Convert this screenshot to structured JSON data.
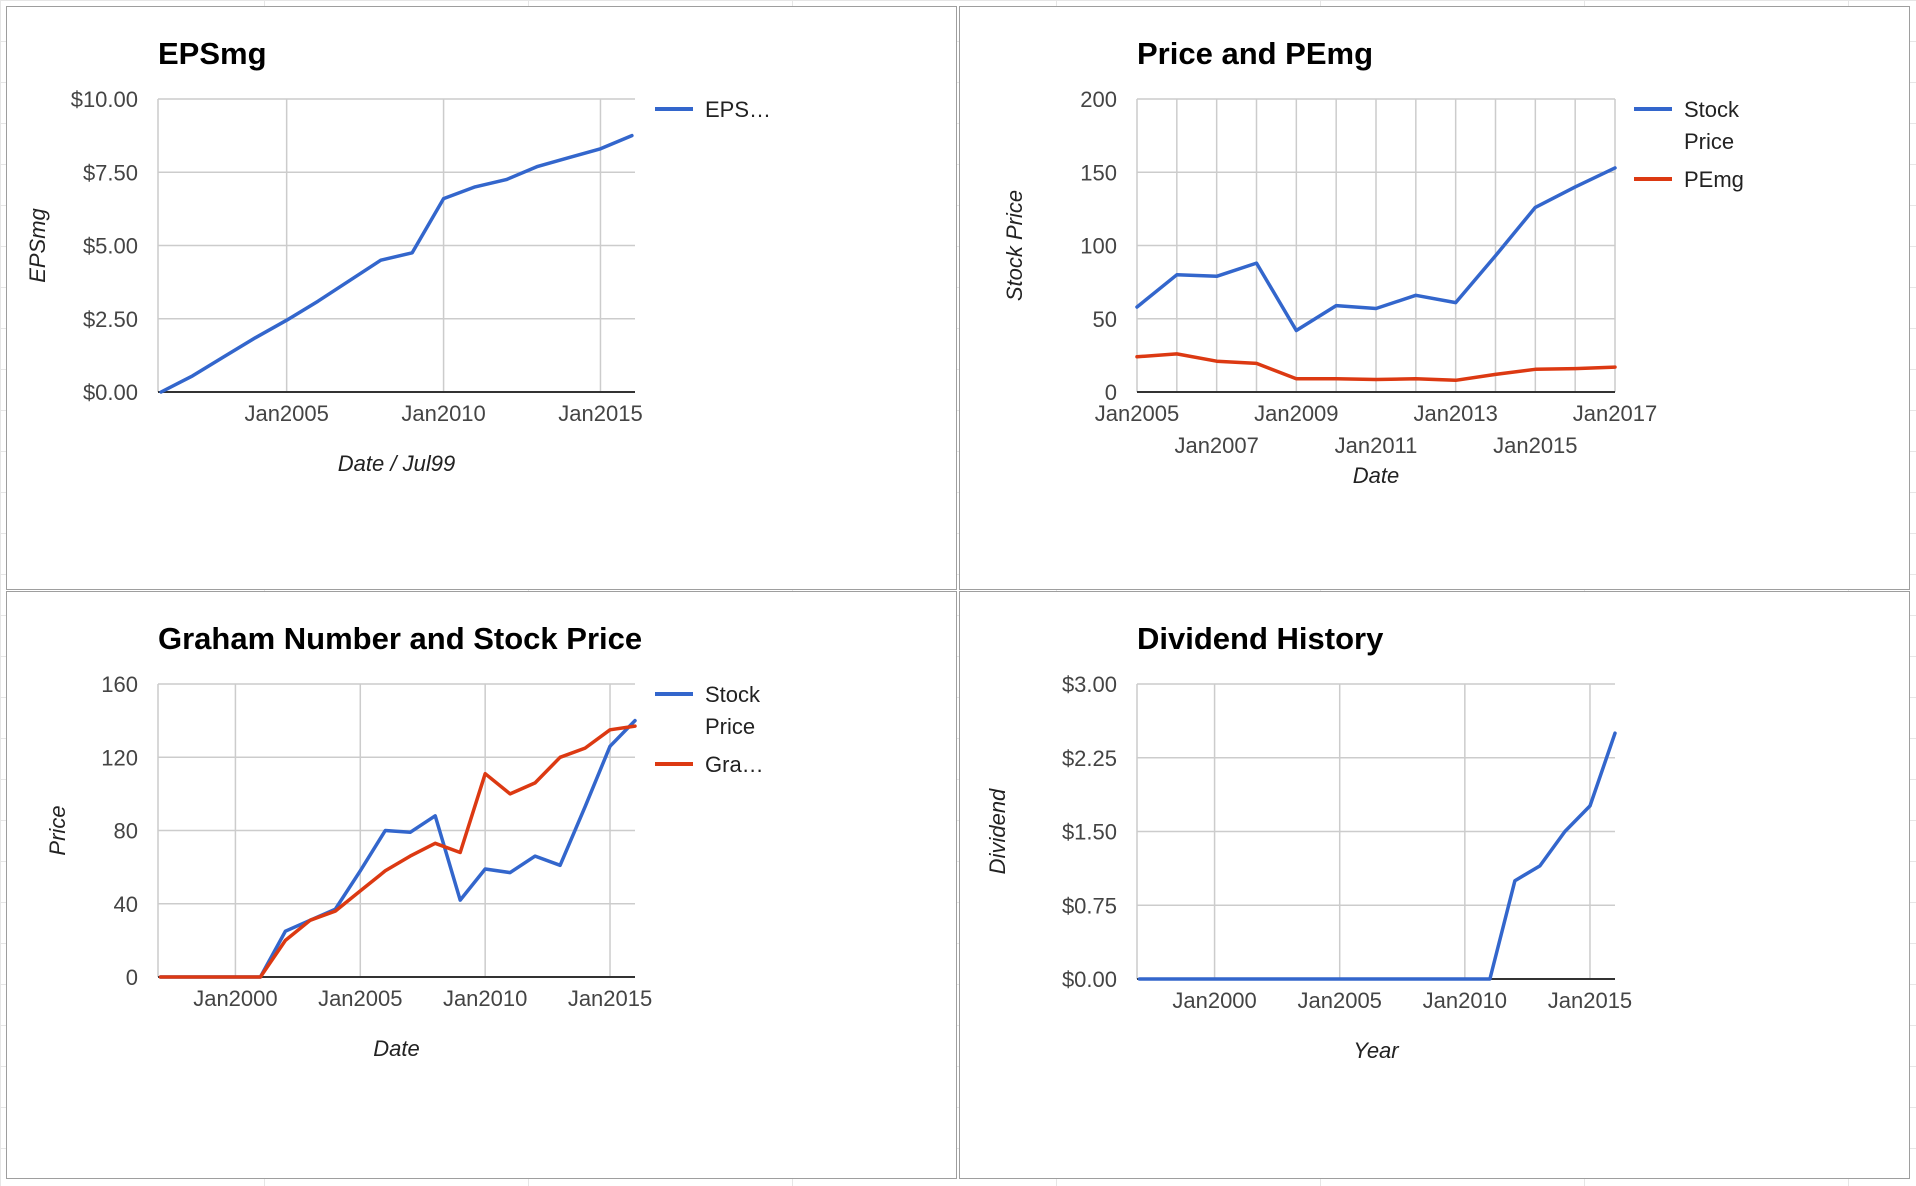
{
  "charts": [
    {
      "id": "eps",
      "title": "EPSmg",
      "xlabel": "Date / Jul99",
      "ylabel": "EPSmg",
      "y_ticks": [
        "$0.00",
        "$2.50",
        "$5.00",
        "$7.50",
        "$10.00"
      ],
      "x_ticks": [
        {
          "label": "Jan2005",
          "x": 2005.0,
          "row": 0
        },
        {
          "label": "Jan2010",
          "x": 2010.0,
          "row": 0
        },
        {
          "label": "Jan2015",
          "x": 2015.0,
          "row": 0
        }
      ],
      "legend": [
        {
          "text": "EPS…",
          "color": "#3366cc"
        }
      ]
    },
    {
      "id": "pe",
      "title": "Price and PEmg",
      "xlabel": "Date",
      "ylabel": "Stock Price",
      "y_ticks": [
        "0",
        "50",
        "100",
        "150",
        "200"
      ],
      "x_ticks": [
        {
          "label": "Jan2005",
          "x": 2005.0,
          "row": 0
        },
        {
          "label": "Jan2007",
          "x": 2007.0,
          "row": 1
        },
        {
          "label": "Jan2009",
          "x": 2009.0,
          "row": 0
        },
        {
          "label": "Jan2011",
          "x": 2011.0,
          "row": 1
        },
        {
          "label": "Jan2013",
          "x": 2013.0,
          "row": 0
        },
        {
          "label": "Jan2015",
          "x": 2015.0,
          "row": 1
        },
        {
          "label": "Jan2017",
          "x": 2017.0,
          "row": 0
        }
      ],
      "legend": [
        {
          "text": "Stock",
          "text2": "Price",
          "color": "#3366cc"
        },
        {
          "text": "PEmg",
          "color": "#dc3912"
        }
      ]
    },
    {
      "id": "graham",
      "title": "Graham Number and Stock Price",
      "xlabel": "Date",
      "ylabel": "Price",
      "y_ticks": [
        "0",
        "40",
        "80",
        "120",
        "160"
      ],
      "x_ticks": [
        {
          "label": "Jan2000",
          "x": 2000.0,
          "row": 0
        },
        {
          "label": "Jan2005",
          "x": 2005.0,
          "row": 0
        },
        {
          "label": "Jan2010",
          "x": 2010.0,
          "row": 0
        },
        {
          "label": "Jan2015",
          "x": 2015.0,
          "row": 0
        }
      ],
      "legend": [
        {
          "text": "Stock",
          "text2": "Price",
          "color": "#3366cc"
        },
        {
          "text": "Gra…",
          "color": "#dc3912"
        }
      ]
    },
    {
      "id": "dividend",
      "title": "Dividend History",
      "xlabel": "Year",
      "ylabel": "Dividend",
      "y_ticks": [
        "$0.00",
        "$0.75",
        "$1.50",
        "$2.25",
        "$3.00"
      ],
      "x_ticks": [
        {
          "label": "Jan2000",
          "x": 2000.0,
          "row": 0
        },
        {
          "label": "Jan2005",
          "x": 2005.0,
          "row": 0
        },
        {
          "label": "Jan2010",
          "x": 2010.0,
          "row": 0
        },
        {
          "label": "Jan2015",
          "x": 2015.0,
          "row": 0
        }
      ],
      "legend": []
    }
  ],
  "chart_data": [
    {
      "type": "line",
      "title": "EPSmg",
      "xlabel": "Date / Jul99",
      "ylabel": "EPSmg",
      "xlim": [
        2000.9,
        2016.1
      ],
      "ylim": [
        0,
        10
      ],
      "grid": true,
      "legend_position": "right",
      "series": [
        {
          "name": "EPS…",
          "color": "#3366cc",
          "x": [
            2001.0,
            2002.0,
            2003.0,
            2004.0,
            2005.0,
            2006.0,
            2007.0,
            2008.0,
            2009.0,
            2010.0,
            2011.0,
            2012.0,
            2013.0,
            2014.0,
            2015.0,
            2016.0
          ],
          "y": [
            0.0,
            0.55,
            1.2,
            1.85,
            2.45,
            3.1,
            3.8,
            4.5,
            4.75,
            6.6,
            7.0,
            7.25,
            7.7,
            8.0,
            8.3,
            8.75
          ]
        }
      ]
    },
    {
      "type": "line",
      "title": "Price and PEmg",
      "xlabel": "Date",
      "ylabel": "Stock Price",
      "xlim": [
        2005.0,
        2017.0
      ],
      "ylim": [
        0,
        200
      ],
      "grid": true,
      "legend_position": "right",
      "series": [
        {
          "name": "Stock Price",
          "color": "#3366cc",
          "x": [
            2005.0,
            2006.0,
            2007.0,
            2008.0,
            2009.0,
            2010.0,
            2011.0,
            2012.0,
            2013.0,
            2014.0,
            2015.0,
            2016.0,
            2017.0
          ],
          "y": [
            58,
            80,
            79,
            88,
            42,
            59,
            57,
            66,
            61,
            93,
            126,
            140,
            153
          ]
        },
        {
          "name": "PEmg",
          "color": "#dc3912",
          "x": [
            2005.0,
            2006.0,
            2007.0,
            2008.0,
            2009.0,
            2010.0,
            2011.0,
            2012.0,
            2013.0,
            2014.0,
            2015.0,
            2016.0,
            2017.0
          ],
          "y": [
            24,
            26,
            21,
            19.5,
            9,
            9,
            8.5,
            9,
            8,
            12,
            15.5,
            16,
            17
          ]
        }
      ]
    },
    {
      "type": "line",
      "title": "Graham Number and Stock Price",
      "xlabel": "Date",
      "ylabel": "Price",
      "xlim": [
        1996.9,
        2016.0
      ],
      "ylim": [
        0,
        160
      ],
      "grid": true,
      "legend_position": "right",
      "series": [
        {
          "name": "Stock Price",
          "color": "#3366cc",
          "x": [
            1997.0,
            1998.0,
            1999.0,
            2000.0,
            2001.0,
            2002.0,
            2003.0,
            2004.0,
            2005.0,
            2006.0,
            2007.0,
            2008.0,
            2009.0,
            2010.0,
            2011.0,
            2012.0,
            2013.0,
            2014.0,
            2015.0,
            2016.0
          ],
          "y": [
            0,
            0,
            0,
            0,
            0,
            25,
            31,
            37,
            58,
            80,
            79,
            88,
            42,
            59,
            57,
            66,
            61,
            93,
            126,
            140
          ]
        },
        {
          "name": "Gra…",
          "color": "#dc3912",
          "x": [
            1997.0,
            1998.0,
            1999.0,
            2000.0,
            2001.0,
            2002.0,
            2003.0,
            2004.0,
            2005.0,
            2006.0,
            2007.0,
            2008.0,
            2009.0,
            2010.0,
            2011.0,
            2012.0,
            2013.0,
            2014.0,
            2015.0,
            2016.0
          ],
          "y": [
            0,
            0,
            0,
            0,
            0,
            20,
            31,
            36,
            47,
            58,
            66,
            73,
            68,
            111,
            100,
            106,
            120,
            125,
            135,
            137
          ]
        }
      ]
    },
    {
      "type": "line",
      "title": "Dividend History",
      "xlabel": "Year",
      "ylabel": "Dividend",
      "xlim": [
        1996.9,
        2016.0
      ],
      "ylim": [
        0,
        3
      ],
      "grid": true,
      "legend_position": "none",
      "series": [
        {
          "color": "#3366cc",
          "x": [
            1997.0,
            1998.0,
            1999.0,
            2000.0,
            2001.0,
            2002.0,
            2003.0,
            2004.0,
            2005.0,
            2006.0,
            2007.0,
            2008.0,
            2009.0,
            2010.0,
            2011.0,
            2012.0,
            2013.0,
            2014.0,
            2015.0,
            2016.0
          ],
          "y": [
            0,
            0,
            0,
            0,
            0,
            0,
            0,
            0,
            0,
            0,
            0,
            0,
            0,
            0,
            0,
            1.0,
            1.15,
            1.5,
            1.76,
            2.5
          ]
        }
      ]
    }
  ]
}
